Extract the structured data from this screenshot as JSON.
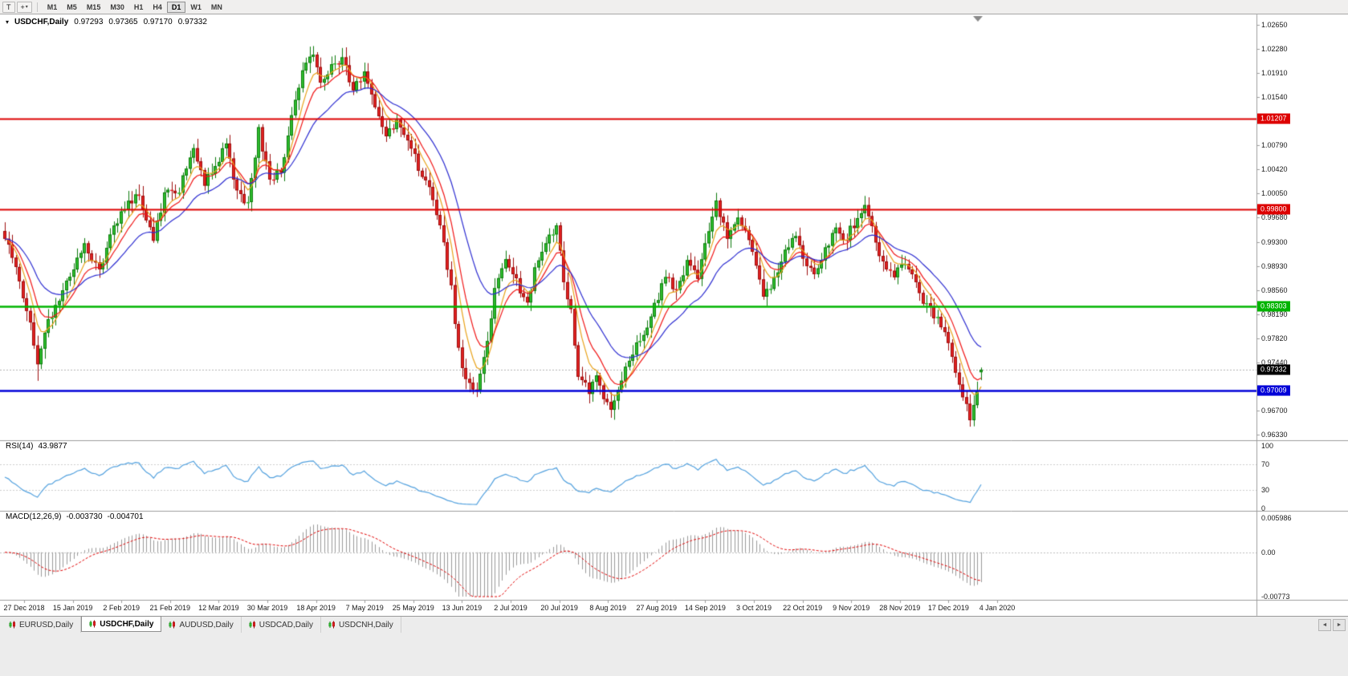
{
  "toolbar": {
    "tools": [
      {
        "name": "text-tool",
        "glyph": "T",
        "has_dropdown": false
      },
      {
        "name": "crosshair-tool",
        "glyph": "+",
        "has_dropdown": true
      }
    ],
    "timeframes": [
      "M1",
      "M5",
      "M15",
      "M30",
      "H1",
      "H4",
      "D1",
      "W1",
      "MN"
    ],
    "active_timeframe": "D1"
  },
  "window": {
    "marker": "▾",
    "symbol": "USDCHF,Daily",
    "open": "0.97293",
    "high": "0.97365",
    "low": "0.97170",
    "close": "0.97332"
  },
  "price_axis": {
    "ticks": [
      "1.02650",
      "1.02280",
      "1.01910",
      "1.01540",
      "1.00790",
      "1.00420",
      "1.00050",
      "0.99680",
      "0.99300",
      "0.98930",
      "0.98560",
      "0.98190",
      "0.97820",
      "0.97440",
      "0.96700",
      "0.96330"
    ],
    "badges": [
      {
        "label": "1.01207",
        "value": 1.01207,
        "color": "#dd0000"
      },
      {
        "label": "0.99800",
        "value": 0.998,
        "color": "#dd0000"
      },
      {
        "label": "0.98303",
        "value": 0.98303,
        "color": "#00b400"
      },
      {
        "label": "0.97332",
        "value": 0.97332,
        "color": "#000000"
      },
      {
        "label": "0.97009",
        "value": 0.97009,
        "color": "#0000d8"
      }
    ]
  },
  "rsi_panel": {
    "label": "RSI(14)",
    "value": "43.9877",
    "axis": [
      "100",
      "70",
      "30",
      "0"
    ],
    "line_color": "#53a1de"
  },
  "macd_panel": {
    "label": "MACD(12,26,9)",
    "value_macd": "-0.003730",
    "value_signal": "-0.004701",
    "axis": [
      "0.005986",
      "0.00",
      "-0.00773"
    ],
    "histogram_color": "#9a9a9a",
    "signal_color": "#e00000"
  },
  "date_axis": {
    "labels": [
      "27 Dec 2018",
      "15 Jan 2019",
      "2 Feb 2019",
      "21 Feb 2019",
      "12 Mar 2019",
      "30 Mar 2019",
      "18 Apr 2019",
      "7 May 2019",
      "25 May 2019",
      "13 Jun 2019",
      "2 Jul 2019",
      "20 Jul 2019",
      "8 Aug 2019",
      "27 Aug 2019",
      "14 Sep 2019",
      "3 Oct 2019",
      "22 Oct 2019",
      "9 Nov 2019",
      "28 Nov 2019",
      "17 Dec 2019",
      "4 Jan 2020"
    ]
  },
  "tabs": {
    "items": [
      {
        "label": "EURUSD,Daily",
        "active": false
      },
      {
        "label": "USDCHF,Daily",
        "active": true
      },
      {
        "label": "AUDUSD,Daily",
        "active": false
      },
      {
        "label": "USDCAD,Daily",
        "active": false
      },
      {
        "label": "USDCNH,Daily",
        "active": false
      }
    ],
    "scroll_left": "◄",
    "scroll_right": "►"
  },
  "chart_data": {
    "type": "candlestick",
    "title": "USDCHF,Daily",
    "symbol": "USDCHF",
    "timeframe": "D1",
    "current_bar": {
      "open": 0.97293,
      "high": 0.97365,
      "low": 0.9717,
      "close": 0.97332
    },
    "y_range": [
      0.9633,
      1.0265
    ],
    "x_range": [
      "27 Dec 2018",
      "4 Jan 2020"
    ],
    "candles_count": 270,
    "bull_color": "#2fbf2f",
    "bear_color": "#e32222",
    "close_path_anchors": [
      [
        0,
        0.9935
      ],
      [
        3,
        0.9895
      ],
      [
        7,
        0.9802
      ],
      [
        9,
        0.9746
      ],
      [
        12,
        0.9806
      ],
      [
        16,
        0.9858
      ],
      [
        22,
        0.9922
      ],
      [
        26,
        0.9884
      ],
      [
        30,
        0.9956
      ],
      [
        34,
        0.9992
      ],
      [
        37,
        1.0002
      ],
      [
        41,
        0.9938
      ],
      [
        44,
        1.0002
      ],
      [
        48,
        1.0012
      ],
      [
        52,
        1.008
      ],
      [
        55,
        1.0022
      ],
      [
        58,
        1.0042
      ],
      [
        61,
        1.0086
      ],
      [
        64,
        1.0004
      ],
      [
        67,
        0.9992
      ],
      [
        70,
        1.0102
      ],
      [
        73,
        1.0024
      ],
      [
        76,
        1.004
      ],
      [
        79,
        1.012
      ],
      [
        82,
        1.019
      ],
      [
        85,
        1.0222
      ],
      [
        87,
        1.0178
      ],
      [
        90,
        1.02
      ],
      [
        93,
        1.0212
      ],
      [
        96,
        1.0168
      ],
      [
        99,
        1.0188
      ],
      [
        103,
        1.0128
      ],
      [
        105,
        1.0098
      ],
      [
        108,
        1.0114
      ],
      [
        112,
        1.0078
      ],
      [
        114,
        1.0042
      ],
      [
        117,
        1.0012
      ],
      [
        120,
        0.9956
      ],
      [
        123,
        0.9858
      ],
      [
        125,
        0.9762
      ],
      [
        127,
        0.9714
      ],
      [
        130,
        0.97
      ],
      [
        133,
        0.9778
      ],
      [
        135,
        0.9854
      ],
      [
        138,
        0.9898
      ],
      [
        141,
        0.9868
      ],
      [
        144,
        0.9834
      ],
      [
        146,
        0.9886
      ],
      [
        149,
        0.9932
      ],
      [
        152,
        0.9956
      ],
      [
        154,
        0.9874
      ],
      [
        156,
        0.9822
      ],
      [
        158,
        0.9728
      ],
      [
        161,
        0.9702
      ],
      [
        163,
        0.9724
      ],
      [
        165,
        0.9692
      ],
      [
        167,
        0.9672
      ],
      [
        169,
        0.9702
      ],
      [
        172,
        0.9748
      ],
      [
        174,
        0.9772
      ],
      [
        177,
        0.9802
      ],
      [
        180,
        0.9844
      ],
      [
        182,
        0.988
      ],
      [
        185,
        0.9856
      ],
      [
        188,
        0.9898
      ],
      [
        191,
        0.9872
      ],
      [
        193,
        0.993
      ],
      [
        196,
        0.9988
      ],
      [
        199,
        0.9938
      ],
      [
        202,
        0.9964
      ],
      [
        204,
        0.9954
      ],
      [
        207,
        0.9898
      ],
      [
        209,
        0.9844
      ],
      [
        212,
        0.9872
      ],
      [
        215,
        0.9918
      ],
      [
        218,
        0.9944
      ],
      [
        220,
        0.9906
      ],
      [
        223,
        0.9882
      ],
      [
        226,
        0.992
      ],
      [
        229,
        0.9948
      ],
      [
        231,
        0.993
      ],
      [
        234,
        0.9958
      ],
      [
        237,
        0.999
      ],
      [
        240,
        0.9932
      ],
      [
        242,
        0.9898
      ],
      [
        245,
        0.988
      ],
      [
        248,
        0.9902
      ],
      [
        251,
        0.9862
      ],
      [
        253,
        0.984
      ],
      [
        256,
        0.9818
      ],
      [
        259,
        0.979
      ],
      [
        261,
        0.9758
      ],
      [
        263,
        0.9712
      ],
      [
        265,
        0.9678
      ],
      [
        266,
        0.9656
      ],
      [
        268,
        0.97
      ],
      [
        269,
        0.97332
      ]
    ],
    "wick_lows": [
      [
        9,
        0.9716
      ],
      [
        130,
        0.9692
      ],
      [
        167,
        0.9659
      ],
      [
        266,
        0.9646
      ]
    ],
    "horizontal_lines": [
      {
        "price": 1.01207,
        "color": "#dd0000",
        "width": 2,
        "role": "resistance"
      },
      {
        "price": 0.998,
        "color": "#dd0000",
        "width": 2,
        "role": "resistance"
      },
      {
        "price": 0.98303,
        "color": "#00b400",
        "width": 2.5,
        "role": "support"
      },
      {
        "price": 0.97009,
        "color": "#0000d8",
        "width": 2.5,
        "role": "support"
      }
    ],
    "current_price_line": 0.97332,
    "moving_averages": [
      {
        "color": "#e8a21a",
        "period": 6,
        "visual": "fast"
      },
      {
        "color": "#f01414",
        "period": 10,
        "visual": "medium"
      },
      {
        "color": "#2b2bd0",
        "period": 22,
        "visual": "slow"
      }
    ],
    "indicators": [
      {
        "name": "RSI",
        "period": 14,
        "current": 43.9877,
        "levels": [
          30,
          70
        ]
      },
      {
        "name": "MACD",
        "fast": 12,
        "slow": 26,
        "signal": 9,
        "current_macd": -0.00373,
        "current_signal": -0.004701,
        "axis_max": 0.005986,
        "axis_min": -0.00773
      }
    ]
  }
}
